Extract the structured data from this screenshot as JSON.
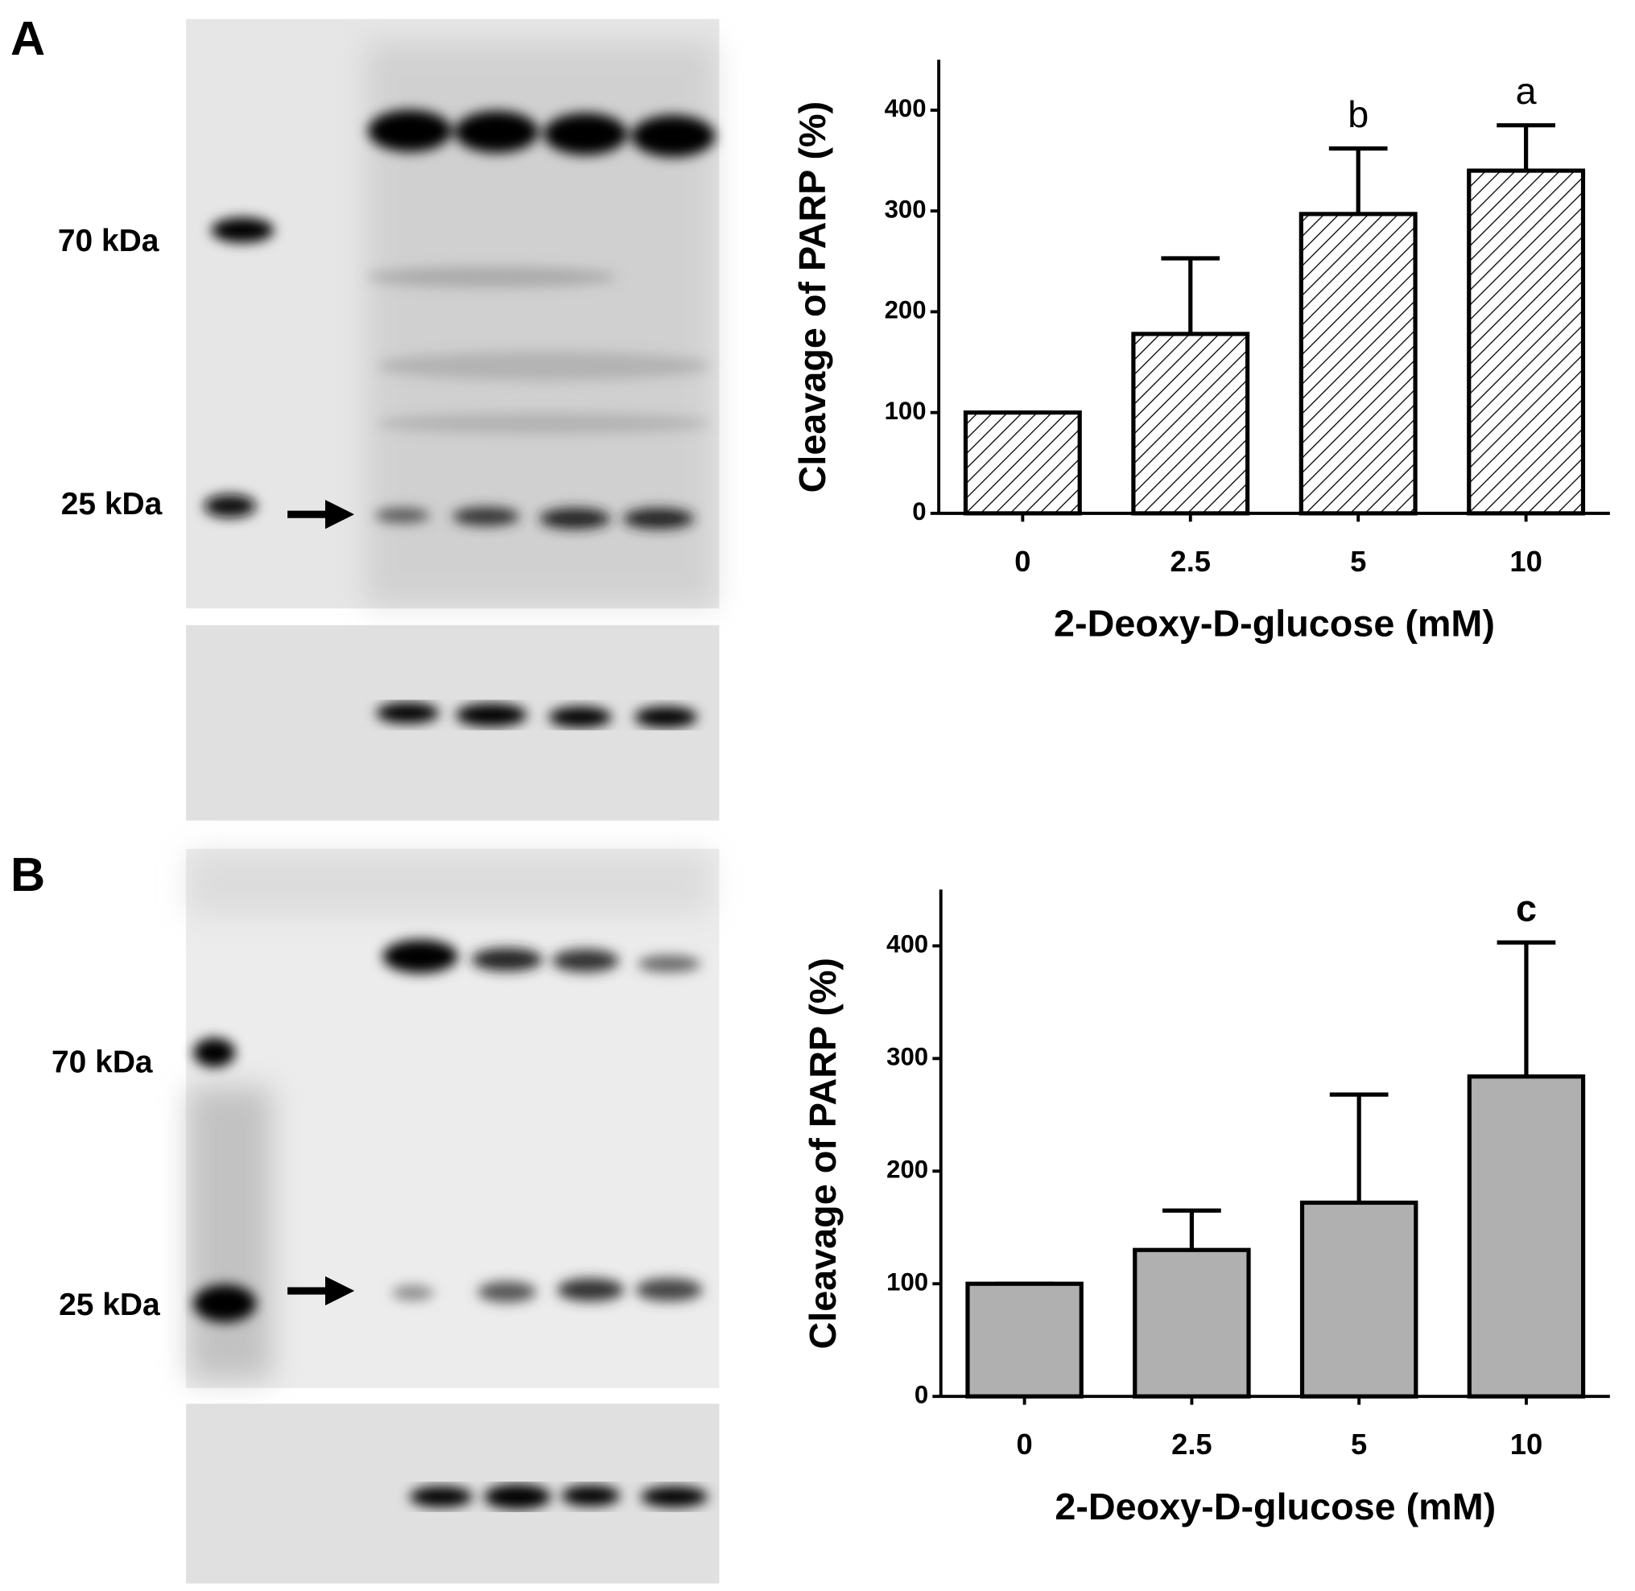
{
  "panels": [
    {
      "label": "A",
      "markers": [
        "70 kDa",
        "25 kDa"
      ]
    },
    {
      "label": "B",
      "markers": [
        "70 kDa",
        "25 kDa"
      ]
    }
  ],
  "chart_data": [
    {
      "type": "bar",
      "xlabel": "2-Deoxy-D-glucose (mM)",
      "ylabel": "Cleavage of PARP (%)",
      "categories": [
        "0",
        "2.5",
        "5",
        "10"
      ],
      "values": [
        100,
        178,
        297,
        340
      ],
      "errors": [
        0,
        75,
        65,
        45
      ],
      "color": "#ffffff",
      "hatch": true,
      "ylim": [
        0,
        450
      ],
      "yticks": [
        0,
        100,
        200,
        300,
        400
      ],
      "annotations": [
        {
          "x": "5",
          "text": "b"
        },
        {
          "x": "10",
          "text": "a"
        }
      ]
    },
    {
      "type": "bar",
      "xlabel": "2-Deoxy-D-glucose (mM)",
      "ylabel": "Cleavage of PARP (%)",
      "categories": [
        "0",
        "2.5",
        "5",
        "10"
      ],
      "values": [
        100,
        130,
        172,
        284
      ],
      "errors": [
        0,
        35,
        96,
        119
      ],
      "color": "#b0b0b0",
      "hatch": false,
      "ylim": [
        0,
        450
      ],
      "yticks": [
        0,
        100,
        200,
        300,
        400
      ],
      "annotations": [
        {
          "x": "10",
          "text": "c"
        }
      ]
    }
  ]
}
